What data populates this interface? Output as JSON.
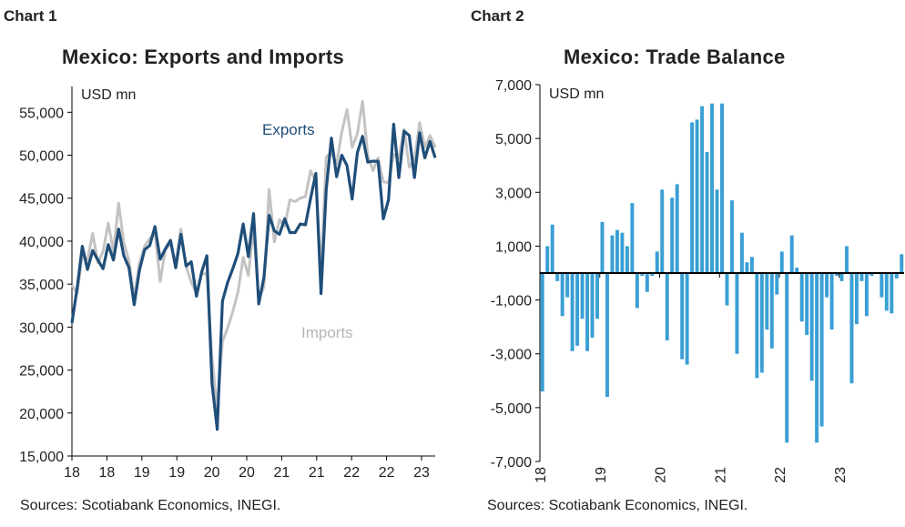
{
  "charts": [
    {
      "label": "Chart 1",
      "title": "Mexico: Exports and Imports",
      "unit_label": "USD mn",
      "source": "Sources: Scotiabank Economics, INEGI."
    },
    {
      "label": "Chart 2",
      "title": "Mexico: Trade Balance",
      "unit_label": "USD mn",
      "source": "Sources: Scotiabank Economics, INEGI."
    }
  ],
  "chart_data": [
    {
      "type": "line",
      "title": "Mexico: Exports and Imports",
      "ylabel": "USD mn",
      "ylim": [
        15000,
        58000
      ],
      "yticks": [
        "15,000",
        "20,000",
        "25,000",
        "30,000",
        "35,000",
        "40,000",
        "45,000",
        "50,000",
        "55,000"
      ],
      "ytick_values": [
        15000,
        20000,
        25000,
        30000,
        35000,
        40000,
        45000,
        50000,
        55000
      ],
      "xticks": [
        "18",
        "18",
        "19",
        "19",
        "20",
        "20",
        "21",
        "21",
        "22",
        "22",
        "23"
      ],
      "grid": false,
      "annotations": [
        "Exports",
        "Imports"
      ],
      "series": [
        {
          "name": "Exports",
          "color": "#1f4e79",
          "values": [
            30500,
            34500,
            39400,
            36700,
            38900,
            37800,
            36800,
            39600,
            37800,
            41400,
            38300,
            36900,
            32600,
            36600,
            39000,
            39500,
            41700,
            37900,
            39100,
            40100,
            36900,
            40800,
            37100,
            37600,
            33600,
            36400,
            38300,
            23400,
            18100,
            33000,
            35200,
            36800,
            38600,
            42000,
            38200,
            43200,
            32700,
            35800,
            43000,
            41200,
            40800,
            42600,
            41000,
            41000,
            42000,
            41900,
            45000,
            47900,
            33900,
            46000,
            52000,
            47500,
            50000,
            48800,
            44900,
            50300,
            52200,
            49200,
            49300,
            49300,
            42600,
            44800,
            53600,
            47400,
            52800,
            52300,
            47400,
            52600,
            49700,
            51600,
            49700
          ]
        },
        {
          "name": "Imports",
          "color": "#c3c3c3",
          "values": [
            34900,
            33900,
            38300,
            37800,
            40900,
            37500,
            38800,
            42100,
            38800,
            44400,
            39800,
            37700,
            33500,
            37400,
            39400,
            40300,
            41100,
            35300,
            39000,
            39700,
            37400,
            41400,
            37100,
            35200,
            33900,
            36200,
            36200,
            26400,
            20400,
            28300,
            29900,
            31800,
            34100,
            38100,
            36000,
            41600,
            33200,
            34700,
            46000,
            39900,
            42500,
            41700,
            44800,
            44600,
            45000,
            45200,
            48200,
            46900,
            36300,
            49800,
            50300,
            49000,
            52700,
            55300,
            50900,
            52500,
            56300,
            50000,
            48200,
            49700,
            46900,
            46800,
            50100,
            49700,
            53000,
            48600,
            49500,
            53800,
            50900,
            52300,
            50900
          ]
        }
      ]
    },
    {
      "type": "bar",
      "title": "Mexico: Trade Balance",
      "ylabel": "USD mn",
      "ylim": [
        -7000,
        7000
      ],
      "yticks": [
        "7,000",
        "5,000",
        "3,000",
        "1,000",
        "-1,000",
        "-3,000",
        "-5,000",
        "-7,000"
      ],
      "ytick_values": [
        7000,
        5000,
        3000,
        1000,
        -1000,
        -3000,
        -5000,
        -7000
      ],
      "xticks": [
        "18",
        "19",
        "20",
        "21",
        "22",
        "23"
      ],
      "grid": false,
      "series": [
        {
          "name": "",
          "color": "#3a9fd5",
          "values": [
            -4400,
            1000,
            1800,
            -300,
            -1600,
            -900,
            -2900,
            -2700,
            -1700,
            -2900,
            -2400,
            -1700,
            1900,
            -4600,
            1400,
            1600,
            1500,
            1000,
            2600,
            -1300,
            -100,
            -700,
            -100,
            800,
            3100,
            -2500,
            2800,
            3300,
            -3200,
            -3400,
            5600,
            5700,
            6200,
            4500,
            6300,
            3100,
            6300,
            -1200,
            2700,
            -3000,
            1500,
            400,
            600,
            -3900,
            -3700,
            -2100,
            -2800,
            -800,
            800,
            -6300,
            1400,
            200,
            -1800,
            -2300,
            -4000,
            -6300,
            -5700,
            -900,
            -2100,
            -100,
            -300,
            1000,
            -4100,
            -1900,
            -300,
            -1600,
            -100,
            0,
            -900,
            -1400,
            -1500,
            -200,
            700
          ]
        }
      ]
    }
  ]
}
